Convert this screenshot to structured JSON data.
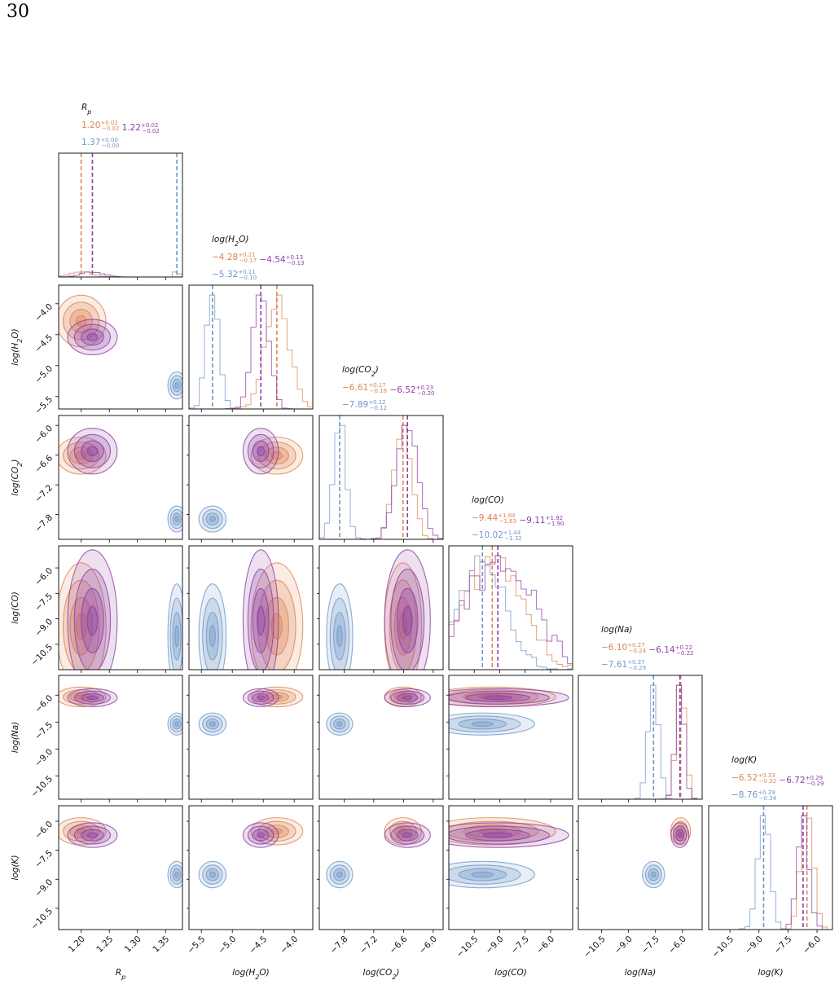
{
  "page": {
    "number": "30"
  },
  "chart_data": {
    "type": "corner",
    "series_colors": {
      "orange": "#dd8452",
      "purple": "#8c3fa8",
      "blue": "#6f97c8"
    },
    "parameters": [
      {
        "key": "Rp",
        "label": "R",
        "sub": "p",
        "ticks": [
          "1.20",
          "1.25",
          "1.30",
          "1.35"
        ],
        "range": [
          1.16,
          1.38
        ],
        "title": {
          "orange": {
            "val": "1.20",
            "up": "+0.02",
            "lo": "−0.02"
          },
          "purple": {
            "val": "1.22",
            "up": "+0.02",
            "lo": "−0.02"
          },
          "blue": {
            "val": "1.37",
            "up": "+0.00",
            "lo": "−0.00"
          }
        }
      },
      {
        "key": "H2O",
        "label": "log(H",
        "sub": "2",
        "tail": "O)",
        "ticks": [
          "−5.5",
          "−5.0",
          "−4.5",
          "−4.0"
        ],
        "range": [
          -5.7,
          -3.7
        ],
        "title": {
          "orange": {
            "val": "−4.28",
            "up": "+0.21",
            "lo": "−0.17"
          },
          "purple": {
            "val": "−4.54",
            "up": "+0.13",
            "lo": "−0.13"
          },
          "blue": {
            "val": "−5.32",
            "up": "+0.11",
            "lo": "−0.10"
          }
        }
      },
      {
        "key": "CO2",
        "label": "log(CO",
        "sub": "2",
        "tail": ")",
        "ticks": [
          "−7.8",
          "−7.2",
          "−6.6",
          "−6.0"
        ],
        "range": [
          -8.3,
          -5.8
        ],
        "title": {
          "orange": {
            "val": "−6.61",
            "up": "+0.17",
            "lo": "−0.16"
          },
          "purple": {
            "val": "−6.52",
            "up": "+0.23",
            "lo": "−0.20"
          },
          "blue": {
            "val": "−7.89",
            "up": "+0.12",
            "lo": "−0.12"
          }
        }
      },
      {
        "key": "CO",
        "label": "log(CO)",
        "ticks": [
          "−10.5",
          "−9.0",
          "−7.5",
          "−6.0"
        ],
        "range": [
          -12.0,
          -4.7
        ],
        "title": {
          "orange": {
            "val": "−9.44",
            "up": "+1.84",
            "lo": "−1.63"
          },
          "purple": {
            "val": "−9.11",
            "up": "+1.92",
            "lo": "−1.90"
          },
          "blue": {
            "val": "−10.02",
            "up": "+1.44",
            "lo": "−1.32"
          }
        }
      },
      {
        "key": "Na",
        "label": "log(Na)",
        "ticks": [
          "−10.5",
          "−9.0",
          "−7.5",
          "−6.0"
        ],
        "range": [
          -11.8,
          -4.9
        ],
        "title": {
          "orange": {
            "val": "−6.10",
            "up": "+0.27",
            "lo": "−0.24"
          },
          "purple": {
            "val": "−6.14",
            "up": "+0.22",
            "lo": "−0.22"
          },
          "blue": {
            "val": "−7.61",
            "up": "+0.27",
            "lo": "−0.29"
          }
        }
      },
      {
        "key": "K",
        "label": "log(K)",
        "ticks": [
          "−10.5",
          "−9.0",
          "−7.5",
          "−6.0"
        ],
        "range": [
          -11.6,
          -5.2
        ],
        "title": {
          "orange": {
            "val": "−6.52",
            "up": "+0.33",
            "lo": "−0.32"
          },
          "purple": {
            "val": "−6.72",
            "up": "+0.29",
            "lo": "−0.29"
          },
          "blue": {
            "val": "−8.76",
            "up": "+0.29",
            "lo": "−0.34"
          }
        }
      }
    ],
    "medians": {
      "orange": [
        1.2,
        -4.28,
        -6.61,
        -9.44,
        -6.1,
        -6.52
      ],
      "purple": [
        1.22,
        -4.54,
        -6.52,
        -9.11,
        -6.14,
        -6.72
      ],
      "blue": [
        1.37,
        -5.32,
        -7.89,
        -10.02,
        -7.61,
        -8.76
      ]
    },
    "sigmas": {
      "orange": [
        0.02,
        0.19,
        0.17,
        1.7,
        0.25,
        0.32
      ],
      "purple": [
        0.02,
        0.13,
        0.21,
        1.9,
        0.22,
        0.29
      ],
      "blue": [
        0.003,
        0.1,
        0.12,
        1.4,
        0.28,
        0.31
      ]
    }
  }
}
